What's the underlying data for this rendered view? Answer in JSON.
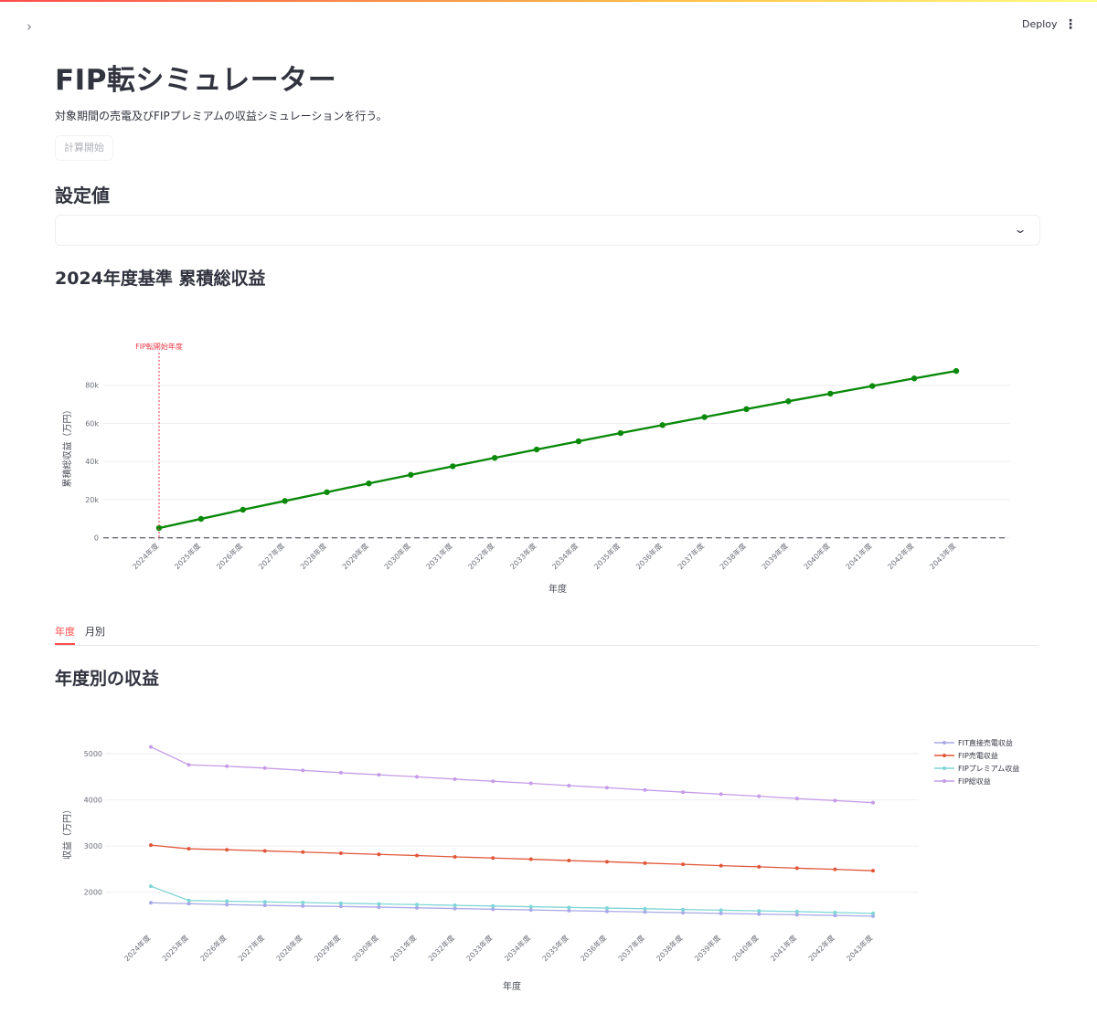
{
  "app": {
    "sidebar_toggle_icon": "chevron-right-icon",
    "deploy_label": "Deploy",
    "menu_icon": "vertical-ellipsis-icon",
    "accent_color": "#ff4b4b"
  },
  "main": {
    "title": "FIP転シミュレーター",
    "description": "対象期間の売電及びFIPプレミアムの収益シミュレーションを行う。",
    "calc_button_label": "計算開始",
    "settings_heading": "設定値",
    "cumulative_heading": "2024年度基準 累積総収益",
    "tabs": [
      {
        "label": "年度",
        "active": true
      },
      {
        "label": "月別",
        "active": false
      }
    ],
    "yearly_heading": "年度別の収益"
  },
  "chart_data": [
    {
      "type": "line",
      "xlabel": "年度",
      "ylabel": "累積総収益（万円）",
      "categories": [
        "2024年度",
        "2025年度",
        "2026年度",
        "2027年度",
        "2028年度",
        "2029年度",
        "2030年度",
        "2031年度",
        "2032年度",
        "2033年度",
        "2034年度",
        "2035年度",
        "2036年度",
        "2037年度",
        "2038年度",
        "2039年度",
        "2040年度",
        "2041年度",
        "2042年度",
        "2043年度"
      ],
      "yticks": [
        {
          "value": 0,
          "label": "0"
        },
        {
          "value": 20000,
          "label": "20k"
        },
        {
          "value": 40000,
          "label": "40k"
        },
        {
          "value": 60000,
          "label": "60k"
        },
        {
          "value": 80000,
          "label": "80k"
        }
      ],
      "ylim": [
        -4000,
        100000
      ],
      "series": [
        {
          "color": "#0a8a0a",
          "values": [
            5100,
            9900,
            14700,
            19300,
            23900,
            28500,
            33000,
            37500,
            41900,
            46300,
            50600,
            54900,
            59100,
            63300,
            67500,
            71600,
            75600,
            79600,
            83600,
            87500
          ]
        }
      ],
      "annotation": {
        "text": "FIP転開始年度",
        "x": "2024年度",
        "color": "#e8394a"
      },
      "grid": true,
      "legend": "none"
    },
    {
      "type": "line",
      "xlabel": "年度",
      "ylabel": "収益（万円）",
      "categories": [
        "2024年度",
        "2025年度",
        "2026年度",
        "2027年度",
        "2028年度",
        "2029年度",
        "2030年度",
        "2031年度",
        "2032年度",
        "2033年度",
        "2034年度",
        "2035年度",
        "2036年度",
        "2037年度",
        "2038年度",
        "2039年度",
        "2040年度",
        "2041年度",
        "2042年度",
        "2043年度"
      ],
      "yticks": [
        {
          "value": 2000,
          "label": "2000"
        },
        {
          "value": 3000,
          "label": "3000"
        },
        {
          "value": 4000,
          "label": "4000"
        },
        {
          "value": 5000,
          "label": "5000"
        }
      ],
      "ylim": [
        1300,
        5300
      ],
      "series": [
        {
          "name": "FIT直接売電収益",
          "color": "#a9a9e8",
          "values": [
            1770,
            1750,
            1730,
            1715,
            1700,
            1690,
            1675,
            1660,
            1645,
            1630,
            1615,
            1600,
            1585,
            1570,
            1555,
            1540,
            1525,
            1510,
            1495,
            1480
          ]
        },
        {
          "name": "FIP売電収益",
          "color": "#e0573a",
          "values": [
            3020,
            2940,
            2920,
            2895,
            2870,
            2845,
            2820,
            2795,
            2765,
            2740,
            2715,
            2685,
            2660,
            2630,
            2605,
            2575,
            2550,
            2520,
            2495,
            2465
          ]
        },
        {
          "name": "FIPプレミアム収益",
          "color": "#7fd6d6",
          "values": [
            2130,
            1820,
            1805,
            1790,
            1775,
            1760,
            1745,
            1730,
            1715,
            1700,
            1685,
            1670,
            1655,
            1640,
            1625,
            1610,
            1595,
            1580,
            1560,
            1540
          ]
        },
        {
          "name": "FIP総収益",
          "color": "#c59be8",
          "values": [
            5150,
            4760,
            4730,
            4690,
            4640,
            4590,
            4545,
            4500,
            4450,
            4405,
            4360,
            4310,
            4265,
            4215,
            4170,
            4125,
            4080,
            4030,
            3985,
            3940
          ]
        }
      ],
      "grid": true,
      "legend": "right"
    }
  ]
}
